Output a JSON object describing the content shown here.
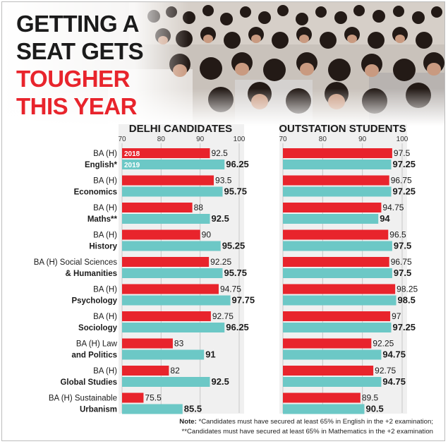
{
  "headline": {
    "line1": "GETTING A",
    "line2": "SEAT GETS",
    "line3": "TOUGHER",
    "line4": "THIS YEAR"
  },
  "chart_data": {
    "type": "bar",
    "orientation": "horizontal",
    "xlim": [
      70,
      100
    ],
    "ticks": [
      "70",
      "80",
      "90",
      "100"
    ],
    "legend_placement": "inside first bar pair (left panel)",
    "colors": {
      "2018": "#e8242c",
      "2019": "#6cc8c6"
    },
    "series_names": [
      "2018",
      "2019"
    ],
    "categories": [
      [
        "BA (H)",
        "English*"
      ],
      [
        "BA (H)",
        "Economics"
      ],
      [
        "BA (H)",
        "Maths**"
      ],
      [
        "BA (H)",
        "History"
      ],
      [
        "BA (H) Social Sciences",
        "& Humanities"
      ],
      [
        "BA (H)",
        "Psychology"
      ],
      [
        "BA (H)",
        "Sociology"
      ],
      [
        "BA (H) Law",
        "and Politics"
      ],
      [
        "BA (H)",
        "Global Studies"
      ],
      [
        "BA (H) Sustainable",
        "Urbanism"
      ]
    ],
    "panels": [
      {
        "title": "DELHI CANDIDATES",
        "series": [
          {
            "name": "2018",
            "values": [
              92.5,
              93.5,
              88,
              90,
              92.25,
              94.75,
              92.75,
              83,
              82,
              75.5
            ],
            "labels": [
              "92.5",
              "93.5",
              "88",
              "90",
              "92.25",
              "94.75",
              "92.75",
              "83",
              "82",
              "75.5"
            ]
          },
          {
            "name": "2019",
            "values": [
              96.25,
              95.75,
              92.5,
              95.25,
              95.75,
              97.75,
              96.25,
              91,
              92.5,
              85.5
            ],
            "labels": [
              "96.25",
              "95.75",
              "92.5",
              "95.25",
              "95.75",
              "97.75",
              "96.25",
              "91",
              "92.5",
              "85.5"
            ]
          }
        ]
      },
      {
        "title": "OUTSTATION STUDENTS",
        "series": [
          {
            "name": "2018",
            "values": [
              97.5,
              96.75,
              94.75,
              96.5,
              96.75,
              98.25,
              97,
              92.25,
              92.75,
              89.5
            ],
            "labels": [
              "97.5",
              "96.75",
              "94.75",
              "96.5",
              "96.75",
              "98.25",
              "97",
              "92.25",
              "92.75",
              "89.5"
            ]
          },
          {
            "name": "2019",
            "values": [
              97.25,
              97.25,
              94,
              97.5,
              97.5,
              98.5,
              97.25,
              94.75,
              94.75,
              90.5
            ],
            "labels": [
              "97.25",
              "97.25",
              "94",
              "97.5",
              "97.5",
              "98.5",
              "97.25",
              "94.75",
              "94.75",
              "90.5"
            ]
          }
        ]
      }
    ]
  },
  "notes": {
    "line1_prefix": "Note:",
    "line1": " *Candidates must have secured at least 65% in English in the +2 examination;",
    "line2": "**Candidates must have secured at least 65% in Mathematics in the +2 examination"
  }
}
